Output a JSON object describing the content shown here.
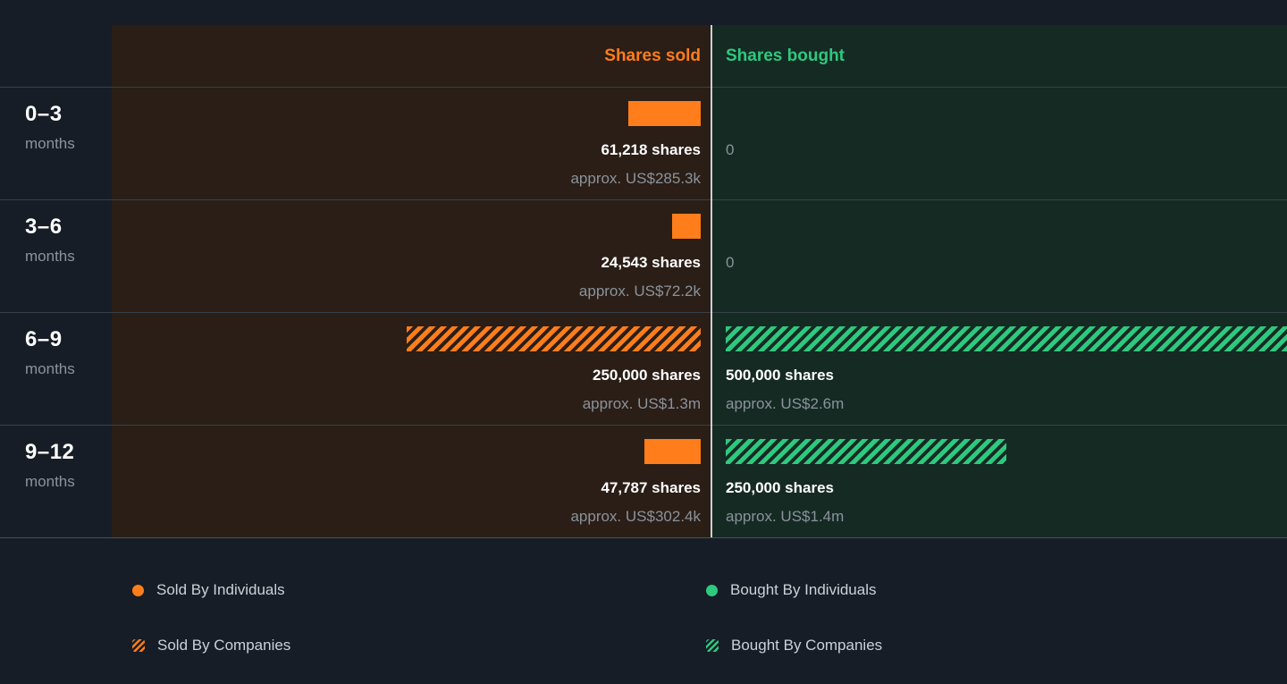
{
  "colors": {
    "background": "#161d26",
    "sold_column_bg": "#2a1e16",
    "bought_column_bg": "#152a23",
    "sold_accent": "#ff7d1a",
    "bought_accent": "#2dc97e",
    "text_primary": "#ffffff",
    "text_secondary": "#8b939c",
    "row_divider": "#39404a",
    "column_divider": "#e9edf0"
  },
  "chart_data": {
    "type": "bar",
    "orientation": "horizontal",
    "title": "",
    "xlim": [
      0,
      500000
    ],
    "x_max_shares": 500000,
    "grid": false,
    "legend_position": "bottom",
    "columns": {
      "sold_header": "Shares sold",
      "bought_header": "Shares bought"
    },
    "rows": [
      {
        "period": "0–3",
        "period_unit": "months",
        "sold": {
          "shares": 61218,
          "shares_label": "61,218 shares",
          "approx_label": "approx. US$285.3k",
          "style": "solid"
        },
        "bought": {
          "shares": 0,
          "shares_label": "0",
          "approx_label": "",
          "style": "none"
        }
      },
      {
        "period": "3–6",
        "period_unit": "months",
        "sold": {
          "shares": 24543,
          "shares_label": "24,543 shares",
          "approx_label": "approx. US$72.2k",
          "style": "solid"
        },
        "bought": {
          "shares": 0,
          "shares_label": "0",
          "approx_label": "",
          "style": "none"
        }
      },
      {
        "period": "6–9",
        "period_unit": "months",
        "sold": {
          "shares": 250000,
          "shares_label": "250,000 shares",
          "approx_label": "approx. US$1.3m",
          "style": "hatched"
        },
        "bought": {
          "shares": 500000,
          "shares_label": "500,000 shares",
          "approx_label": "approx. US$2.6m",
          "style": "hatched"
        }
      },
      {
        "period": "9–12",
        "period_unit": "months",
        "sold": {
          "shares": 47787,
          "shares_label": "47,787 shares",
          "approx_label": "approx. US$302.4k",
          "style": "solid"
        },
        "bought": {
          "shares": 250000,
          "shares_label": "250,000 shares",
          "approx_label": "approx. US$1.4m",
          "style": "hatched"
        }
      }
    ],
    "legend": [
      {
        "label": "Sold By Individuals",
        "marker": "circle",
        "color": "#ff7d1a"
      },
      {
        "label": "Bought By Individuals",
        "marker": "circle",
        "color": "#2dc97e"
      },
      {
        "label": "Sold By Companies",
        "marker": "hatched-square",
        "color": "#ff7d1a"
      },
      {
        "label": "Bought By Companies",
        "marker": "hatched-square",
        "color": "#2dc97e"
      }
    ]
  }
}
